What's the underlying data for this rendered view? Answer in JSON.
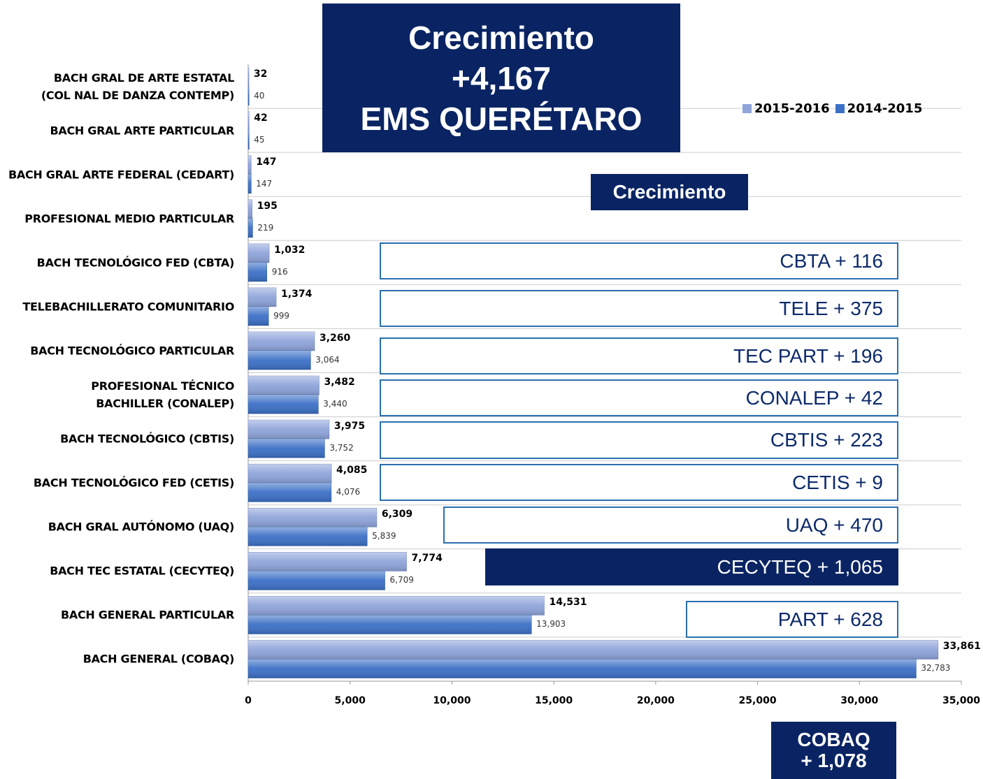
{
  "chart_data": {
    "type": "bar",
    "orientation": "horizontal",
    "title": "Crecimiento\n+4,167\nEMS QUERÉTARO",
    "subtitle": "Crecimiento",
    "categories": [
      "BACH GRAL DE ARTE ESTATAL\n(COL NAL DE DANZA CONTEMP)",
      "BACH GRAL ARTE PARTICULAR",
      "BACH GRAL ARTE FEDERAL (CEDART)",
      "PROFESIONAL MEDIO PARTICULAR",
      "BACH TECNOLÓGICO FED (CBTA)",
      "TELEBACHILLERATO COMUNITARIO",
      "BACH TECNOLÓGICO PARTICULAR",
      "PROFESIONAL TÉCNICO\nBACHILLER (CONALEP)",
      "BACH TECNOLÓGICO (CBTIS)",
      "BACH TECNOLÓGICO FED (CETIS)",
      "BACH GRAL AUTÓNOMO (UAQ)",
      "BACH TEC ESTATAL (CECYTEQ)",
      "BACH GENERAL PARTICULAR",
      "BACH GENERAL (COBAQ)"
    ],
    "series": [
      {
        "name": "2015-2016",
        "color": "#8fa4da",
        "values": [
          32,
          42,
          147,
          195,
          1032,
          1374,
          3260,
          3482,
          3975,
          4085,
          6309,
          7774,
          14531,
          33861
        ],
        "value_labels": [
          "32",
          "42",
          "147",
          "195",
          "1,032",
          "1,374",
          "3,260",
          "3,482",
          "3,975",
          "4,085",
          "6,309",
          "7,774",
          "14,531",
          "33,861"
        ]
      },
      {
        "name": "2014-2015",
        "color": "#3c70c6",
        "values": [
          40,
          45,
          147,
          219,
          916,
          999,
          3064,
          3440,
          3752,
          4076,
          5839,
          6709,
          13903,
          32783
        ],
        "value_labels": [
          "40",
          "45",
          "147",
          "219",
          "916",
          "999",
          "3,064",
          "3,440",
          "3,752",
          "4,076",
          "5,839",
          "6,709",
          "13,903",
          "32,783"
        ]
      }
    ],
    "xlim": [
      0,
      35000
    ],
    "xticks": [
      0,
      {
        "value": 5000,
        "label": "5,000"
      },
      {
        "value": 10000,
        "label": "10,000"
      },
      {
        "value": 15000,
        "label": "15,000"
      },
      {
        "value": 20000,
        "label": "20,000"
      },
      {
        "value": 25000,
        "label": "25,000"
      },
      {
        "value": 30000,
        "label": "30,000"
      },
      {
        "value": 35000,
        "label": "35,000"
      }
    ],
    "legend": "top-right",
    "annotations": [
      "CBTA + 116",
      "TELE + 375",
      "TEC PART + 196",
      "CONALEP + 42",
      "CBTIS + 223",
      "CETIS + 9",
      "UAQ + 470",
      "CECYTEQ + 1,065",
      "PART + 628",
      "COBAQ\n+ 1,078"
    ]
  }
}
